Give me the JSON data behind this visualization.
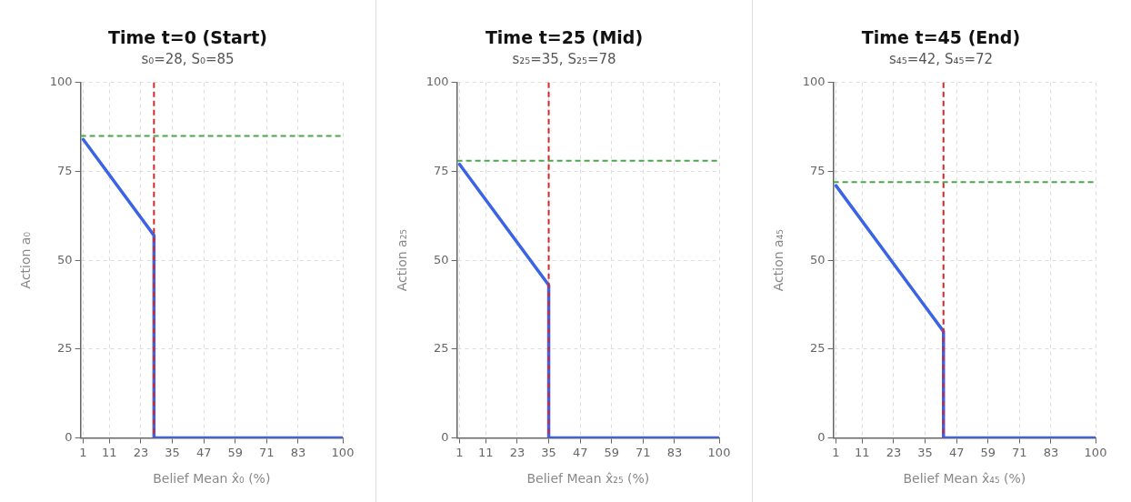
{
  "chart_data": [
    {
      "type": "line",
      "title": "Time t=0 (Start)",
      "subtitle": "s₀=28, S₀=85",
      "xlabel": "Belief Mean x̂₀ (%)",
      "ylabel": "Action a₀",
      "xlim": [
        0,
        100
      ],
      "xticks": [
        1,
        11,
        23,
        35,
        47,
        59,
        71,
        83,
        100
      ],
      "ylim": [
        0,
        100
      ],
      "yticks": [
        0,
        25,
        50,
        75,
        100
      ],
      "grid": true,
      "legend": false,
      "marker": "none",
      "line_style": "solid",
      "series": [
        {
          "color": "#3b63e6",
          "x": [
            1,
            28,
            28,
            100
          ],
          "values": [
            84,
            57,
            0,
            0
          ]
        }
      ],
      "ref_lines": [
        {
          "axis": "x",
          "value": 28,
          "color": "#d62728",
          "line_style": "dashed"
        },
        {
          "axis": "y",
          "value": 85,
          "color": "#4ca64c",
          "line_style": "dashed"
        }
      ]
    },
    {
      "type": "line",
      "title": "Time t=25 (Mid)",
      "subtitle": "s₂₅=35, S₂₅=78",
      "xlabel": "Belief Mean x̂₂₅ (%)",
      "ylabel": "Action a₂₅",
      "xlim": [
        0,
        100
      ],
      "xticks": [
        1,
        11,
        23,
        35,
        47,
        59,
        71,
        83,
        100
      ],
      "ylim": [
        0,
        100
      ],
      "yticks": [
        0,
        25,
        50,
        75,
        100
      ],
      "grid": true,
      "legend": false,
      "marker": "none",
      "line_style": "solid",
      "series": [
        {
          "color": "#3b63e6",
          "x": [
            1,
            35,
            35,
            100
          ],
          "values": [
            77,
            43,
            0,
            0
          ]
        }
      ],
      "ref_lines": [
        {
          "axis": "x",
          "value": 35,
          "color": "#d62728",
          "line_style": "dashed"
        },
        {
          "axis": "y",
          "value": 78,
          "color": "#4ca64c",
          "line_style": "dashed"
        }
      ]
    },
    {
      "type": "line",
      "title": "Time t=45 (End)",
      "subtitle": "s₄₅=42, S₄₅=72",
      "xlabel": "Belief Mean x̂₄₅ (%)",
      "ylabel": "Action a₄₅",
      "xlim": [
        0,
        100
      ],
      "xticks": [
        1,
        11,
        23,
        35,
        47,
        59,
        71,
        83,
        100
      ],
      "ylim": [
        0,
        100
      ],
      "yticks": [
        0,
        25,
        50,
        75,
        100
      ],
      "grid": true,
      "legend": false,
      "marker": "none",
      "line_style": "solid",
      "series": [
        {
          "color": "#3b63e6",
          "x": [
            1,
            42,
            42,
            100
          ],
          "values": [
            71,
            30,
            0,
            0
          ]
        }
      ],
      "ref_lines": [
        {
          "axis": "x",
          "value": 42,
          "color": "#d62728",
          "line_style": "dashed"
        },
        {
          "axis": "y",
          "value": 72,
          "color": "#4ca64c",
          "line_style": "dashed"
        }
      ]
    }
  ]
}
